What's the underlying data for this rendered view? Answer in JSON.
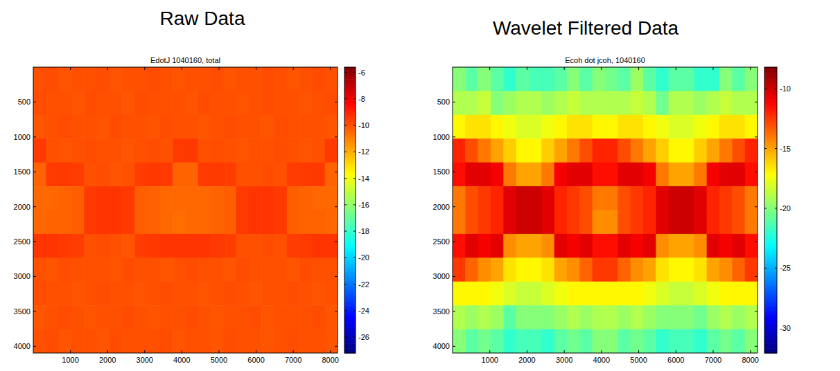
{
  "chart_data": [
    {
      "type": "heatmap",
      "title": "Raw Data",
      "subtitle": "EdotJ 1040160, total",
      "xlim": [
        0,
        8192
      ],
      "xticks": [
        1000,
        2000,
        3000,
        4000,
        5000,
        6000,
        7000,
        8000
      ],
      "ylim": [
        4096,
        0
      ],
      "yticks": [
        500,
        1000,
        1500,
        2000,
        2500,
        3000,
        3500,
        4000
      ],
      "color_lim": [
        -27.2,
        -5.6
      ],
      "color_ticks": [
        -26,
        -24,
        -22,
        -20,
        -18,
        -16,
        -14,
        -12,
        -10,
        -8,
        -6
      ],
      "cells": [
        [
          -10.0,
          -9.9,
          -10.1,
          -10.0,
          -10.0,
          -9.9,
          -10.1,
          -10.0,
          -10.0,
          -9.9,
          -10.0,
          -10.1,
          -10.0,
          -10.0,
          -9.9,
          -10.1,
          -10.0,
          -10.0,
          -9.9,
          -10.0,
          -10.1,
          -10.0,
          -9.9,
          -10.0
        ],
        [
          -9.9,
          -10.0,
          -10.0,
          -10.1,
          -9.9,
          -10.0,
          -10.0,
          -10.1,
          -9.9,
          -10.0,
          -10.0,
          -10.0,
          -10.1,
          -9.9,
          -10.0,
          -10.0,
          -10.1,
          -10.0,
          -9.9,
          -10.0,
          -10.0,
          -10.1,
          -10.0,
          -9.9
        ],
        [
          -10.1,
          -10.0,
          -9.9,
          -10.0,
          -10.0,
          -10.1,
          -9.9,
          -10.0,
          -10.0,
          -10.1,
          -9.9,
          -10.0,
          -10.0,
          -10.1,
          -10.0,
          -9.9,
          -10.0,
          -10.0,
          -10.1,
          -9.9,
          -10.0,
          -10.0,
          -10.0,
          -10.1
        ],
        [
          -9.5,
          -10.0,
          -10.1,
          -10.0,
          -9.9,
          -10.0,
          -10.0,
          -10.1,
          -10.0,
          -9.9,
          -10.0,
          -9.5,
          -9.5,
          -10.0,
          -9.9,
          -10.0,
          -10.1,
          -10.0,
          -10.0,
          -9.9,
          -10.0,
          -10.1,
          -10.0,
          -9.5
        ],
        [
          -10.4,
          -9.5,
          -9.5,
          -9.6,
          -10.0,
          -9.9,
          -10.1,
          -10.0,
          -9.6,
          -9.5,
          -9.5,
          -10.4,
          -10.4,
          -9.5,
          -9.5,
          -9.6,
          -10.0,
          -10.0,
          -9.9,
          -10.0,
          -9.6,
          -9.5,
          -9.5,
          -10.4
        ],
        [
          -10.5,
          -10.5,
          -10.4,
          -10.3,
          -9.5,
          -9.4,
          -9.4,
          -9.5,
          -10.3,
          -10.4,
          -10.5,
          -10.5,
          -10.5,
          -10.5,
          -10.4,
          -10.3,
          -9.5,
          -9.4,
          -9.4,
          -9.5,
          -10.3,
          -10.4,
          -10.5,
          -10.5
        ],
        [
          -10.5,
          -10.4,
          -10.4,
          -10.3,
          -9.5,
          -9.4,
          -9.4,
          -9.5,
          -10.3,
          -10.4,
          -10.5,
          -10.6,
          -10.5,
          -10.5,
          -10.4,
          -10.3,
          -9.5,
          -9.4,
          -9.4,
          -9.5,
          -10.3,
          -10.4,
          -10.4,
          -10.5
        ],
        [
          -9.4,
          -9.4,
          -9.5,
          -9.6,
          -10.0,
          -9.9,
          -10.0,
          -10.1,
          -9.6,
          -9.5,
          -9.4,
          -9.4,
          -9.4,
          -9.4,
          -9.5,
          -9.6,
          -10.0,
          -10.0,
          -9.9,
          -10.0,
          -9.6,
          -9.5,
          -9.4,
          -9.4
        ],
        [
          -10.0,
          -10.1,
          -9.9,
          -10.0,
          -10.0,
          -10.0,
          -10.1,
          -9.9,
          -10.0,
          -10.0,
          -10.1,
          -10.0,
          -9.9,
          -10.0,
          -10.0,
          -10.1,
          -9.9,
          -10.0,
          -10.0,
          -10.0,
          -10.1,
          -9.9,
          -10.0,
          -10.0
        ],
        [
          -9.9,
          -10.0,
          -10.0,
          -10.1,
          -10.0,
          -9.9,
          -10.0,
          -10.0,
          -10.1,
          -10.0,
          -9.9,
          -10.0,
          -10.0,
          -10.1,
          -10.0,
          -9.9,
          -10.0,
          -10.1,
          -10.0,
          -10.0,
          -9.9,
          -10.0,
          -10.1,
          -10.0
        ],
        [
          -10.1,
          -10.0,
          -9.9,
          -10.0,
          -10.1,
          -10.0,
          -10.0,
          -9.9,
          -10.0,
          -10.1,
          -10.0,
          -10.0,
          -9.9,
          -10.0,
          -10.1,
          -10.0,
          -10.0,
          -9.9,
          -10.1,
          -10.0,
          -10.0,
          -10.0,
          -9.9,
          -10.1
        ],
        [
          -10.0,
          -9.9,
          -10.1,
          -10.0,
          -10.0,
          -10.1,
          -9.9,
          -10.0,
          -10.0,
          -10.0,
          -9.9,
          -10.1,
          -10.0,
          -10.0,
          -10.1,
          -9.9,
          -10.0,
          -10.0,
          -10.1,
          -10.0,
          -9.9,
          -10.0,
          -10.0,
          -10.1
        ]
      ]
    },
    {
      "type": "heatmap",
      "title": "Wavelet Filtered Data",
      "subtitle": "Ecoh dot jcoh, 1040160",
      "xlim": [
        0,
        8192
      ],
      "xticks": [
        1000,
        2000,
        3000,
        4000,
        5000,
        6000,
        7000,
        8000
      ],
      "ylim": [
        4096,
        0
      ],
      "yticks": [
        500,
        1000,
        1500,
        2000,
        2500,
        3000,
        3500,
        4000
      ],
      "color_lim": [
        -32.1,
        -8.2
      ],
      "color_ticks": [
        -30,
        -25,
        -20,
        -15,
        -10
      ],
      "cells": [
        [
          -20,
          -21,
          -20,
          -21,
          -22,
          -21,
          -21.5,
          -21.5,
          -21,
          -20,
          -21,
          -20,
          -20.5,
          -21,
          -19.5,
          -21,
          -22,
          -21,
          -21,
          -22,
          -22,
          -20,
          -21,
          -20
        ],
        [
          -19,
          -19,
          -18.5,
          -20,
          -19.5,
          -19,
          -19,
          -19.5,
          -19,
          -18.5,
          -19,
          -19,
          -19,
          -19,
          -18.5,
          -19,
          -20.5,
          -19,
          -19,
          -19.5,
          -19,
          -18.5,
          -19,
          -19
        ],
        [
          -17,
          -16.5,
          -16.5,
          -17,
          -17.5,
          -18,
          -18,
          -17.5,
          -17,
          -16.5,
          -16.5,
          -17,
          -17,
          -16.5,
          -16.5,
          -17,
          -17.5,
          -18,
          -18,
          -17.5,
          -17,
          -16.5,
          -16.5,
          -17
        ],
        [
          -12,
          -13,
          -14,
          -15,
          -16,
          -17,
          -17,
          -16,
          -15,
          -14,
          -13,
          -12,
          -12,
          -13,
          -14,
          -15,
          -16,
          -17,
          -17,
          -16,
          -15,
          -14,
          -13,
          -12
        ],
        [
          -11.5,
          -10.5,
          -10.5,
          -11,
          -14,
          -15,
          -15,
          -14,
          -11,
          -10.5,
          -10.5,
          -11.5,
          -11.5,
          -10.5,
          -10.5,
          -11,
          -14,
          -15,
          -15,
          -14,
          -11,
          -10.5,
          -10.5,
          -11.5
        ],
        [
          -14,
          -13,
          -12.5,
          -12,
          -10.5,
          -10,
          -10,
          -10.5,
          -12,
          -12.5,
          -13,
          -14,
          -14,
          -13,
          -12.5,
          -12,
          -10.5,
          -10,
          -10,
          -10.5,
          -12,
          -12.5,
          -13,
          -14
        ],
        [
          -14,
          -13,
          -12.5,
          -12,
          -10.5,
          -10,
          -10,
          -10.5,
          -12,
          -12.5,
          -13,
          -14.5,
          -14.5,
          -13,
          -12.5,
          -12,
          -10.5,
          -10,
          -10,
          -10.5,
          -12,
          -12.5,
          -13,
          -14
        ],
        [
          -11.5,
          -10.5,
          -11,
          -10.5,
          -14.5,
          -15,
          -15,
          -14.5,
          -10.5,
          -11,
          -10.5,
          -11.5,
          -11.5,
          -10.5,
          -11,
          -10.5,
          -14.5,
          -15,
          -15,
          -14.5,
          -10.5,
          -11,
          -10.5,
          -11.5
        ],
        [
          -12.5,
          -13.5,
          -14.5,
          -15,
          -16.5,
          -17,
          -17,
          -16.5,
          -15,
          -14.5,
          -13.5,
          -12.5,
          -12.5,
          -13.5,
          -14.5,
          -15,
          -16.5,
          -17,
          -17,
          -16.5,
          -15,
          -14.5,
          -13.5,
          -12.5
        ],
        [
          -17,
          -17,
          -17,
          -17.5,
          -18,
          -18.5,
          -18.5,
          -18,
          -17.5,
          -17,
          -17,
          -17,
          -17,
          -17,
          -17,
          -17.5,
          -18,
          -18.5,
          -18.5,
          -18,
          -17.5,
          -17,
          -17,
          -17
        ],
        [
          -19,
          -19.5,
          -19,
          -19.5,
          -21,
          -20,
          -20,
          -20,
          -19.5,
          -19,
          -19.5,
          -19,
          -19,
          -19.5,
          -19,
          -19.5,
          -20,
          -20,
          -20,
          -20.5,
          -19.5,
          -19,
          -19.5,
          -19
        ],
        [
          -20,
          -21,
          -20.5,
          -21,
          -22,
          -21.5,
          -21.5,
          -22,
          -21,
          -20.5,
          -21,
          -20,
          -20,
          -21,
          -20.5,
          -21,
          -22,
          -21.5,
          -21.5,
          -22,
          -21,
          -20.5,
          -21,
          -20
        ]
      ]
    }
  ]
}
